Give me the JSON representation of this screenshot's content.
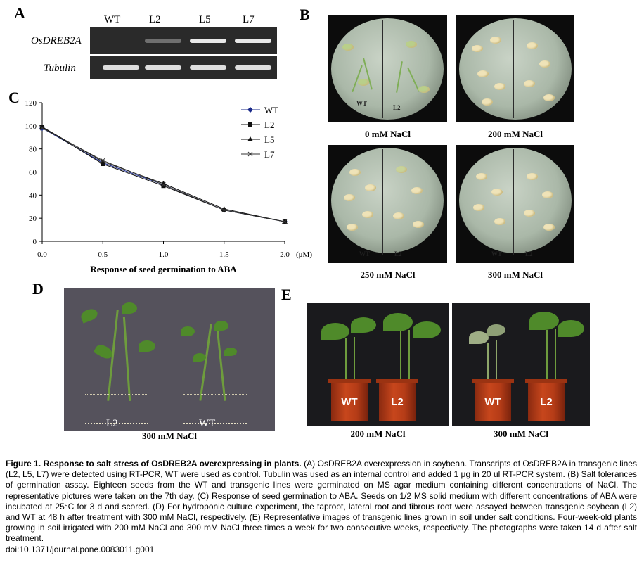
{
  "panels": {
    "a": {
      "letter": "A",
      "lanes": [
        "WT",
        "L2",
        "L5",
        "L7"
      ],
      "rows": [
        "OsDREB2A",
        "Tubulin"
      ],
      "band_intensity": {
        "OsDREB2A": [
          0.0,
          0.35,
          0.95,
          0.95
        ],
        "Tubulin": [
          0.9,
          0.9,
          0.9,
          0.9
        ]
      }
    },
    "b": {
      "letter": "B",
      "dish_left_label": "WT",
      "dish_right_label": "L2",
      "dishes": [
        {
          "caption": "0 mM NaCl"
        },
        {
          "caption": "200 mM NaCl"
        },
        {
          "caption": "250 mM NaCl"
        },
        {
          "caption": "300 mM NaCl"
        }
      ]
    },
    "c": {
      "letter": "C",
      "unit": "(μM)"
    },
    "d": {
      "letter": "D",
      "left_label": "L2",
      "right_label": "WT",
      "caption": "300 mM NaCl"
    },
    "e": {
      "letter": "E",
      "photos": [
        {
          "pot_labels": [
            "WT",
            "L2"
          ],
          "caption": "200 mM NaCl"
        },
        {
          "pot_labels": [
            "WT",
            "L2"
          ],
          "caption": "300 mM NaCl"
        }
      ]
    }
  },
  "chart_data": {
    "type": "line",
    "title": "",
    "xlabel": "Response of seed germination to ABA",
    "ylabel": "",
    "x": [
      0.0,
      0.5,
      1.0,
      1.5,
      2.0
    ],
    "x_tick_labels": [
      "0.0",
      "0.5",
      "1.0",
      "1.5",
      "2.0"
    ],
    "y_ticks": [
      0,
      20,
      40,
      60,
      80,
      100,
      120
    ],
    "xlim": [
      0,
      2.0
    ],
    "ylim": [
      0,
      120
    ],
    "grid": false,
    "legend_position": "top-right",
    "series": [
      {
        "name": "WT",
        "marker": "diamond",
        "color": "#1a2a8a",
        "values": [
          98,
          68,
          49,
          27,
          17
        ]
      },
      {
        "name": "L2",
        "marker": "square",
        "color": "#111111",
        "values": [
          99,
          67,
          48,
          27,
          17
        ]
      },
      {
        "name": "L5",
        "marker": "triangle",
        "color": "#111111",
        "values": [
          99,
          69,
          50,
          28,
          17
        ]
      },
      {
        "name": "L7",
        "marker": "x",
        "color": "#333333",
        "values": [
          98,
          70,
          49,
          27,
          17
        ]
      }
    ]
  },
  "caption": {
    "title": "Figure 1. Response to salt stress of OsDREB2A overexpressing in plants.",
    "body": "(A) OsDREB2A overexpression in soybean. Transcripts of OsDREB2A in transgenic lines (L2, L5, L7) were detected using RT-PCR, WT were used as control. Tubulin was used as an internal control and added 1 μg in 20 ul RT-PCR system. (B) Salt tolerances of germination assay. Eighteen seeds from the WT and transgenic lines were germinated on MS agar medium containing different concentrations of NaCl. The representative pictures were taken on the 7th day. (C) Response of seed germination to ABA. Seeds on 1/2 MS solid medium with different concentrations of ABA were incubated at 25°C for 3 d and scored. (D) For hydroponic culture experiment, the taproot, lateral root and fibrous root were assayed between transgenic soybean (L2) and WT at 48 h after treatment with 300 mM NaCl, respectively. (E) Representative images of transgenic lines grown in soil under salt conditions. Four-week-old plants growing in soil irrigated with 200 mM NaCl and 300 mM NaCl three times a week for two consecutive weeks, respectively. The photographs were taken 14 d after salt treatment.",
    "doi": "doi:10.1371/journal.pone.0083011.g001"
  },
  "colors": {
    "gel_background": "#2a2a2a",
    "band": "#f2f2f2",
    "pot": "#c7461c",
    "photo_d_background": "#55525c"
  }
}
